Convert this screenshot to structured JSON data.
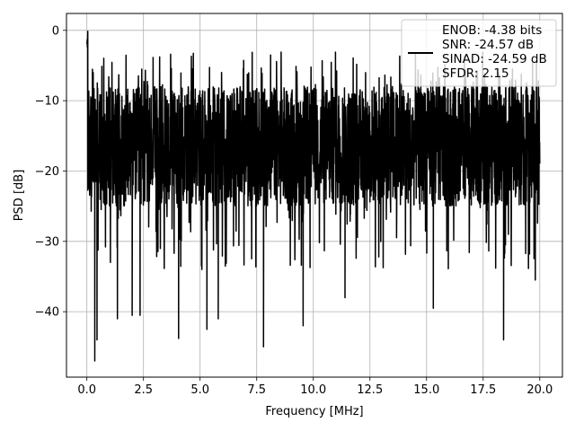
{
  "chart_data": {
    "type": "line",
    "title": "",
    "xlabel": "Frequency [MHz]",
    "ylabel": "PSD [dB]",
    "xlim": [
      -0.9,
      21.0
    ],
    "ylim": [
      -49.3,
      2.4
    ],
    "x_ticks": [
      0.0,
      2.5,
      5.0,
      7.5,
      10.0,
      12.5,
      15.0,
      17.5,
      20.0
    ],
    "x_tick_labels": [
      "0.0",
      "2.5",
      "5.0",
      "7.5",
      "10.0",
      "12.5",
      "15.0",
      "17.5",
      "20.0"
    ],
    "y_ticks": [
      0,
      -10,
      -20,
      -30,
      -40
    ],
    "y_tick_labels": [
      "0",
      "−10",
      "−20",
      "−30",
      "−40"
    ],
    "grid": true,
    "legend_position": "top-right",
    "series": [
      {
        "color": "#000000",
        "x_range": [
          0.0,
          20.0
        ],
        "typical_range_db": [
          -25,
          -8
        ],
        "peak_db": 0.0,
        "min_db": -47.0
      }
    ],
    "legend_lines": [
      "ENOB: -4.38 bits",
      "SNR: -24.57 dB",
      "SINAD: -24.59 dB",
      "SFDR: 2.15"
    ],
    "deep_dips": [
      {
        "x": 0.35,
        "y": -47.0
      },
      {
        "x": 0.45,
        "y": -44.0
      },
      {
        "x": 1.35,
        "y": -41.0
      },
      {
        "x": 2.0,
        "y": -40.5
      },
      {
        "x": 2.35,
        "y": -40.5
      },
      {
        "x": 4.05,
        "y": -43.8
      },
      {
        "x": 5.3,
        "y": -42.5
      },
      {
        "x": 5.8,
        "y": -41.0
      },
      {
        "x": 7.8,
        "y": -45.0
      },
      {
        "x": 9.55,
        "y": -42.0
      },
      {
        "x": 11.4,
        "y": -38.0
      },
      {
        "x": 15.3,
        "y": -39.5
      },
      {
        "x": 18.4,
        "y": -44.0
      },
      {
        "x": 19.8,
        "y": -35.5
      }
    ]
  }
}
